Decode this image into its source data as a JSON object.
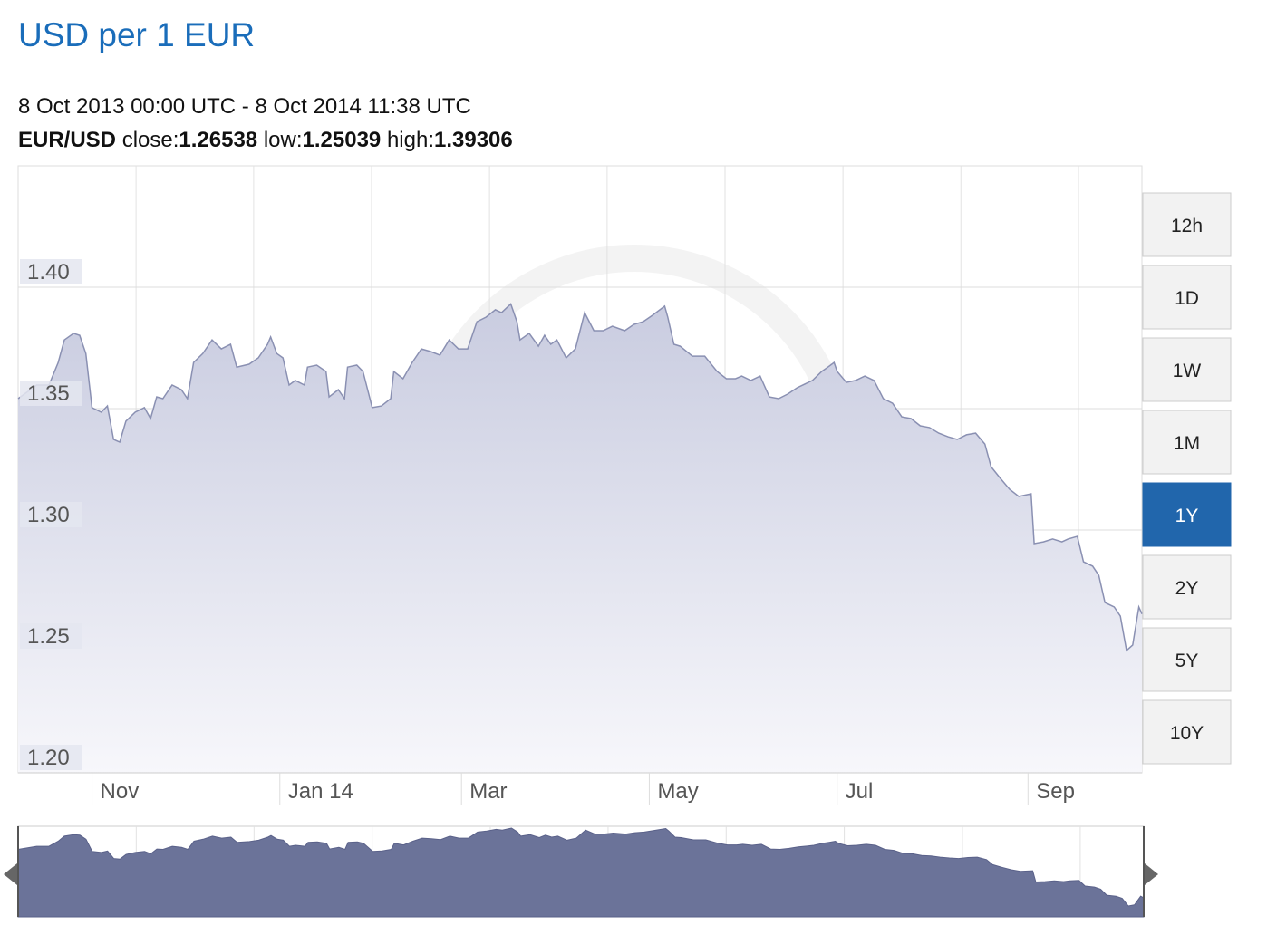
{
  "chart_data": {
    "type": "area",
    "title": "USD per 1 EUR",
    "subtitle": "8 Oct 2013 00:00 UTC - 8 Oct 2014 11:38 UTC",
    "pair": "EUR/USD",
    "stats": [
      {
        "label": "close:",
        "value": 1.26538
      },
      {
        "label": "low:",
        "value": 1.25039
      },
      {
        "label": "high:",
        "value": 1.39306
      }
    ],
    "x": [
      0,
      6,
      10,
      13,
      15,
      18,
      20,
      22,
      24,
      27,
      29,
      31,
      33,
      35,
      38,
      41,
      43,
      45,
      47,
      50,
      53,
      55,
      57,
      60,
      63,
      66,
      69,
      71,
      75,
      78,
      81,
      82,
      84,
      86,
      88,
      90,
      93,
      94,
      97,
      100,
      101,
      104,
      106,
      107,
      110,
      112,
      115,
      118,
      121,
      122,
      125,
      128,
      131,
      134,
      137,
      140,
      143,
      146,
      149,
      152,
      155,
      157,
      160,
      162,
      163,
      166,
      169,
      171,
      173,
      175,
      178,
      181,
      184,
      187,
      190,
      193,
      197,
      200,
      203,
      206,
      210,
      211,
      213,
      215,
      219,
      223,
      227,
      230,
      233,
      235,
      238,
      241,
      244,
      247,
      250,
      253,
      258,
      261,
      263,
      265,
      266,
      269,
      272,
      275,
      278,
      281,
      284,
      287,
      290,
      293,
      296,
      299,
      302,
      305,
      308,
      311,
      314,
      316,
      319,
      322,
      325,
      329,
      330,
      333,
      336,
      339,
      341,
      344,
      346,
      349,
      351,
      353,
      356,
      358,
      360,
      362,
      364,
      365
    ],
    "values": [
      1.3541,
      1.3597,
      1.3597,
      1.369,
      1.3783,
      1.381,
      1.3802,
      1.3727,
      1.3504,
      1.3485,
      1.3511,
      1.3373,
      1.3362,
      1.3448,
      1.3485,
      1.3504,
      1.3459,
      1.3548,
      1.3541,
      1.3597,
      1.3578,
      1.3541,
      1.369,
      1.3727,
      1.3783,
      1.3746,
      1.3765,
      1.3671,
      1.3683,
      1.3709,
      1.3765,
      1.3795,
      1.3727,
      1.3709,
      1.3597,
      1.3616,
      1.3597,
      1.3671,
      1.3679,
      1.3653,
      1.3548,
      1.3578,
      1.3541,
      1.3671,
      1.3679,
      1.3653,
      1.3504,
      1.3511,
      1.3541,
      1.3653,
      1.3623,
      1.369,
      1.3746,
      1.3735,
      1.372,
      1.3783,
      1.3746,
      1.3746,
      1.3858,
      1.3877,
      1.3907,
      1.3895,
      1.3931,
      1.3858,
      1.3783,
      1.381,
      1.3757,
      1.3802,
      1.3765,
      1.3783,
      1.3709,
      1.3746,
      1.3895,
      1.3821,
      1.3821,
      1.3839,
      1.3821,
      1.3847,
      1.3858,
      1.3884,
      1.3922,
      1.3877,
      1.3765,
      1.3757,
      1.3716,
      1.3716,
      1.3653,
      1.3623,
      1.3623,
      1.3634,
      1.3616,
      1.3634,
      1.3548,
      1.3541,
      1.356,
      1.3586,
      1.3616,
      1.3653,
      1.3671,
      1.369,
      1.3653,
      1.3608,
      1.3616,
      1.3634,
      1.3616,
      1.3541,
      1.3522,
      1.3466,
      1.3459,
      1.3429,
      1.3422,
      1.3399,
      1.3384,
      1.3373,
      1.3392,
      1.3399,
      1.3354,
      1.3261,
      1.3213,
      1.3168,
      1.3138,
      1.3149,
      1.2944,
      1.2951,
      1.2963,
      1.2951,
      1.2963,
      1.2974,
      1.2869,
      1.2851,
      1.2813,
      1.2701,
      1.2683,
      1.2645,
      1.2504,
      1.2526,
      1.2683,
      1.2654
    ],
    "color": "#6b7399",
    "xlim": [
      0,
      365
    ],
    "ylim": [
      1.2,
      1.45
    ],
    "yticks": [
      {
        "value": 1.2,
        "label": "1.20"
      },
      {
        "value": 1.25,
        "label": "1.25"
      },
      {
        "value": 1.3,
        "label": "1.30"
      },
      {
        "value": 1.35,
        "label": "1.35"
      },
      {
        "value": 1.4,
        "label": "1.40"
      }
    ],
    "xticks": [
      {
        "value": 24,
        "label": "Nov"
      },
      {
        "value": 85,
        "label": "Jan 14"
      },
      {
        "value": 144,
        "label": "Mar"
      },
      {
        "value": 205,
        "label": "May"
      },
      {
        "value": 266,
        "label": "Jul"
      },
      {
        "value": 328,
        "label": "Sep"
      }
    ],
    "xgrid": [
      38.3,
      76.5,
      114.8,
      153.1,
      191.3,
      229.6,
      267.9,
      306.2,
      344.4
    ],
    "grid": true,
    "range_buttons": [
      "12h",
      "1D",
      "1W",
      "1M",
      "1Y",
      "2Y",
      "5Y",
      "10Y"
    ],
    "selected_range": "1Y"
  }
}
